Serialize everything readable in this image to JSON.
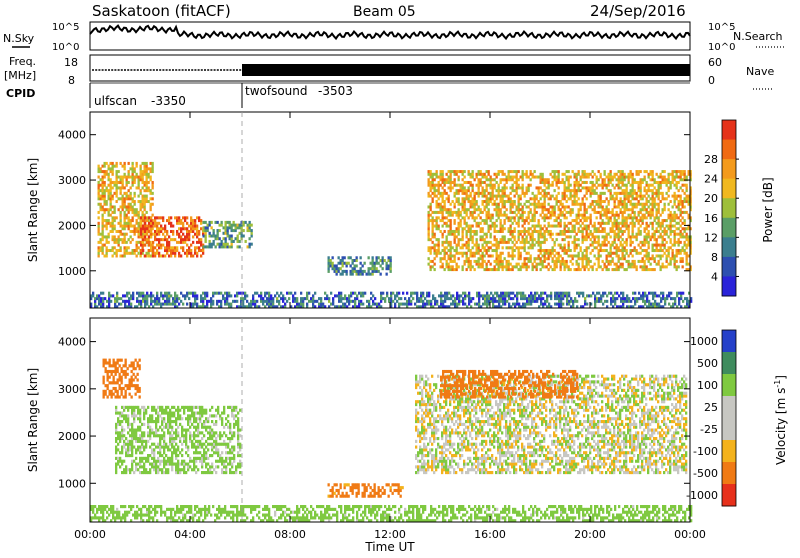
{
  "header": {
    "title": "Saskatoon (fitACF)",
    "beam": "Beam 05",
    "date": "24/Sep/2016"
  },
  "noise_panel": {
    "left_label": "N.Sky",
    "left_ticks": [
      "10^5",
      "10^0"
    ],
    "right_label": "N.Search",
    "right_ticks": [
      "10^5",
      "10^0"
    ]
  },
  "freq_panel": {
    "left_label_1": "Freq.",
    "left_label_2": "[MHz]",
    "left_ticks": [
      "18",
      "8"
    ],
    "right_label": "Nave",
    "right_ticks": [
      "60",
      "0"
    ]
  },
  "cpid_panel": {
    "label": "CPID",
    "segments": [
      {
        "name": "ulfscan",
        "id": "-3350",
        "start_hour": 0,
        "end_hour": 6
      },
      {
        "name": "twofsound",
        "id": "-3503",
        "start_hour": 6,
        "end_hour": 24
      }
    ]
  },
  "time_axis": {
    "label": "Time UT",
    "ticks": [
      "00:00",
      "04:00",
      "08:00",
      "12:00",
      "16:00",
      "20:00",
      "00:00"
    ],
    "hours": [
      0,
      4,
      8,
      12,
      16,
      20,
      24
    ]
  },
  "range_axis": {
    "label": "Slant Range [km]",
    "ticks": [
      "1000",
      "2000",
      "3000",
      "4000"
    ],
    "values": [
      1000,
      2000,
      3000,
      4000
    ],
    "range": [
      180,
      4500
    ]
  },
  "power_scale": {
    "label": "Power [dB]",
    "ticks": [
      "4",
      "8",
      "12",
      "16",
      "20",
      "24",
      "28"
    ],
    "colors": [
      "#2a23d9",
      "#2d4fb0",
      "#3b7e8e",
      "#5a9e66",
      "#9ebf3a",
      "#f0b81f",
      "#f39a1c",
      "#f06a12",
      "#e5321a"
    ]
  },
  "velocity_scale": {
    "label": "Velocity [m s",
    "label_sup": "-1",
    "label_end": "]",
    "ticks": [
      "1000",
      "500",
      "100",
      "25",
      "-25",
      "-100",
      "-500",
      "-1000"
    ],
    "colors": [
      "#2540c9",
      "#3f8c5e",
      "#7fc940",
      "#c7c7c2",
      "#c7c7c2",
      "#f3b21c",
      "#f07a14",
      "#e7301b"
    ]
  },
  "chart_data": [
    {
      "type": "heatmap",
      "title": "Saskatoon (fitACF)  Beam 05  24/Sep/2016",
      "xlabel": "Time UT",
      "ylabel": "Slant Range [km]",
      "xlim": [
        0,
        24
      ],
      "ylim": [
        180,
        4500
      ],
      "colorbar": "Power [dB]",
      "regions": [
        {
          "t": [
            0.3,
            2.5
          ],
          "range": [
            1300,
            3400
          ],
          "power": 20
        },
        {
          "t": [
            2.0,
            4.5
          ],
          "range": [
            1300,
            2200
          ],
          "power": 26
        },
        {
          "t": [
            4.5,
            6.5
          ],
          "range": [
            1500,
            2100
          ],
          "power": 12
        },
        {
          "t": [
            9.5,
            12.0
          ],
          "range": [
            900,
            1300
          ],
          "power": 10
        },
        {
          "t": [
            13.5,
            24.0
          ],
          "range": [
            1000,
            3200
          ],
          "power": 20
        },
        {
          "t": [
            0,
            24
          ],
          "range": [
            180,
            500
          ],
          "power": 8
        }
      ]
    },
    {
      "type": "heatmap",
      "title": "",
      "xlabel": "Time UT",
      "ylabel": "Slant Range [km]",
      "xlim": [
        0,
        24
      ],
      "ylim": [
        180,
        4500
      ],
      "colorbar": "Velocity [m s-1]",
      "regions": [
        {
          "t": [
            0.5,
            2.0
          ],
          "range": [
            2800,
            3600
          ],
          "velocity": -300
        },
        {
          "t": [
            1.0,
            6.0
          ],
          "range": [
            1200,
            2600
          ],
          "velocity": 60
        },
        {
          "t": [
            13.0,
            23.8
          ],
          "range": [
            1200,
            3300
          ],
          "velocity": 0
        },
        {
          "t": [
            14.0,
            19.5
          ],
          "range": [
            2800,
            3400
          ],
          "velocity": -400
        },
        {
          "t": [
            9.5,
            12.5
          ],
          "range": [
            700,
            1000
          ],
          "velocity": -150
        },
        {
          "t": [
            0,
            24
          ],
          "range": [
            180,
            500
          ],
          "velocity": 80
        }
      ]
    }
  ]
}
